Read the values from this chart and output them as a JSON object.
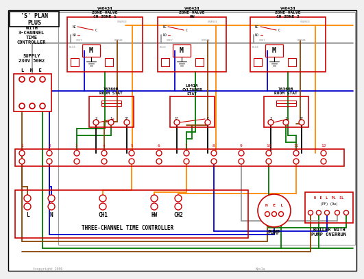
{
  "bg_color": "#f0f0f0",
  "title_box": "'S' PLAN\nPLUS",
  "subtitle": "WITH\n3-CHANNEL\nTIME\nCONTROLLER",
  "supply_text": "SUPPLY\n230V 50Hz",
  "lne_text": "L  N  E",
  "zone_valve_1_title": "V4043H\nZONE VALVE\nCH ZONE 1",
  "zone_valve_hw_title": "V4043H\nZONE VALVE\nHW",
  "zone_valve_2_title": "V4043H\nZONE VALVE\nCH ZONE 2",
  "room_stat_1_title": "T6360B\nROOM STAT",
  "cylinder_stat_title": "L641A\nCYLINDER\nSTAT",
  "room_stat_2_title": "T6360B\nROOM STAT",
  "controller_title": "THREE-CHANNEL TIME CONTROLLER",
  "pump_title": "PUMP",
  "boiler_title": "BOILER WITH\nPUMP OVERRUN",
  "red": "#cc0000",
  "blue": "#0000cc",
  "green": "#007700",
  "orange": "#ff8800",
  "brown": "#884400",
  "gray": "#999999",
  "black": "#000000",
  "white": "#ffffff",
  "lw_main": 1.2,
  "lw_wire": 1.3,
  "lw_thin": 0.8
}
